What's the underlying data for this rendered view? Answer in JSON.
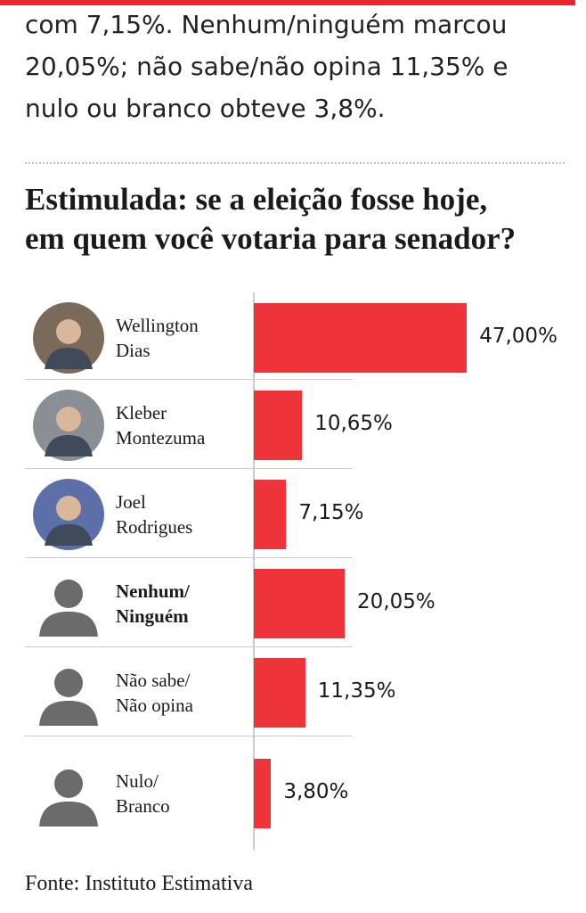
{
  "article": {
    "paragraph": "com 7,15%. Nenhum/ninguém marcou\n20,05%; não sabe/não opina 11,35% e\nnulo ou branco obteve 3,8%.",
    "source": "Fonte: Instituto Estimativa"
  },
  "chart_data": {
    "type": "bar",
    "orientation": "horizontal",
    "title": "Estimulada: se a eleição fosse hoje,\nem quem você votaria para senador?",
    "categories": [
      "Wellington\nDias",
      "Kleber\nMontezuma",
      "Joel\nRodrigues",
      "Nenhum/\nNinguém",
      "Não sabe/\nNão opina",
      "Nulo/\nBranco"
    ],
    "values": [
      47.0,
      10.65,
      7.15,
      20.05,
      11.35,
      3.8
    ],
    "value_labels": [
      "47,00%",
      "10,65%",
      "7,15%",
      "20,05%",
      "11,35%",
      "3,80%"
    ],
    "color": "#ee333b",
    "bold_category": 3
  }
}
